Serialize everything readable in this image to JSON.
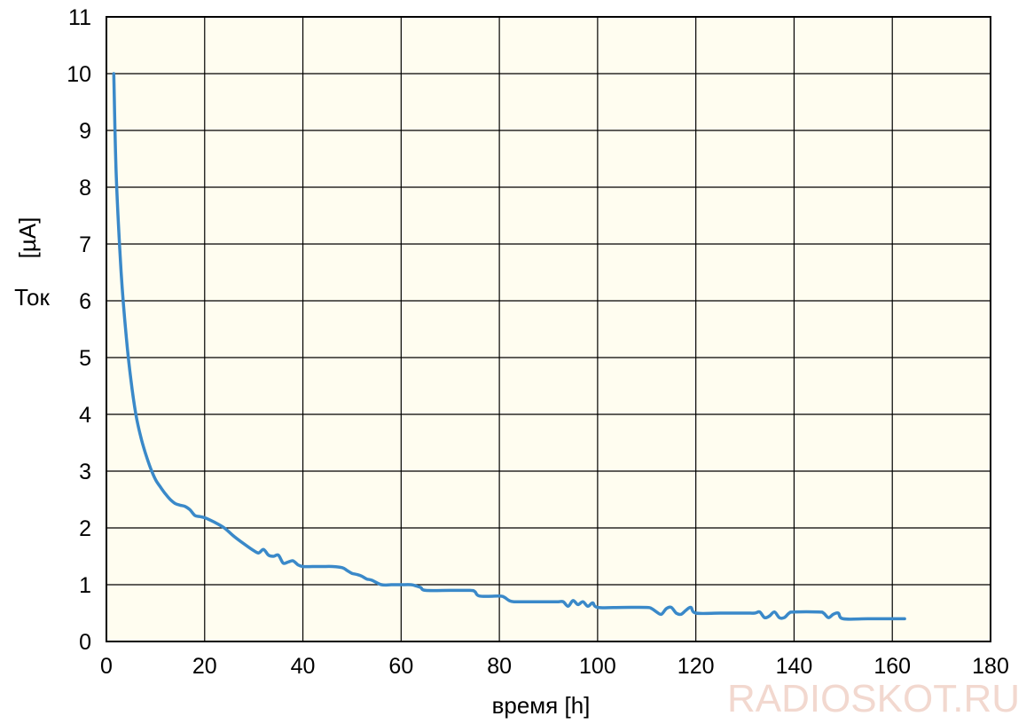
{
  "chart_data": {
    "type": "line",
    "xlabel": "время [h]",
    "ylabel_unit": "[µA]",
    "ylabel": "Ток",
    "xlim": [
      0,
      180
    ],
    "ylim": [
      0,
      11
    ],
    "x_ticks": [
      "0",
      "20",
      "40",
      "60",
      "80",
      "100",
      "120",
      "140",
      "160",
      "180"
    ],
    "y_ticks": [
      "0",
      "1",
      "2",
      "3",
      "4",
      "5",
      "6",
      "7",
      "8",
      "9",
      "10",
      "11"
    ],
    "grid": true,
    "plot_background": "#fffdf0",
    "line_color": "#3a89c9",
    "series": [
      {
        "x": [
          1.5,
          2,
          3,
          4,
          5,
          6,
          7,
          8,
          9,
          10,
          11,
          12,
          13,
          14,
          15,
          16,
          17,
          18,
          19,
          20,
          22,
          24,
          26,
          28,
          30,
          31,
          32,
          33,
          34,
          35,
          36,
          37,
          38,
          39,
          40,
          42,
          44,
          46,
          48,
          49,
          50,
          51,
          52,
          53,
          54,
          56,
          58,
          60,
          62,
          63,
          64,
          65,
          70,
          74,
          75,
          76,
          80,
          81,
          82,
          83,
          85,
          90,
          92,
          93,
          94,
          95,
          96,
          97,
          98,
          99,
          100,
          105,
          110,
          111,
          112,
          113,
          114,
          115,
          116,
          117,
          118,
          119,
          120,
          125,
          130,
          132,
          133,
          134,
          135,
          136,
          137,
          138,
          139,
          140,
          145,
          146,
          147,
          148,
          149,
          150,
          155,
          160,
          162.5
        ],
        "y": [
          10.0,
          8.2,
          6.5,
          5.4,
          4.6,
          4.0,
          3.6,
          3.3,
          3.05,
          2.85,
          2.72,
          2.6,
          2.5,
          2.43,
          2.4,
          2.38,
          2.32,
          2.22,
          2.2,
          2.18,
          2.1,
          2.0,
          1.85,
          1.72,
          1.6,
          1.56,
          1.62,
          1.52,
          1.5,
          1.52,
          1.38,
          1.4,
          1.42,
          1.35,
          1.32,
          1.32,
          1.32,
          1.32,
          1.3,
          1.25,
          1.2,
          1.18,
          1.15,
          1.1,
          1.08,
          1.0,
          1.0,
          1.0,
          1.0,
          0.98,
          0.95,
          0.9,
          0.9,
          0.9,
          0.88,
          0.8,
          0.8,
          0.78,
          0.72,
          0.7,
          0.7,
          0.7,
          0.7,
          0.7,
          0.62,
          0.72,
          0.65,
          0.7,
          0.62,
          0.68,
          0.6,
          0.6,
          0.6,
          0.58,
          0.52,
          0.48,
          0.58,
          0.6,
          0.5,
          0.48,
          0.55,
          0.6,
          0.5,
          0.5,
          0.5,
          0.5,
          0.52,
          0.42,
          0.45,
          0.52,
          0.42,
          0.42,
          0.5,
          0.52,
          0.52,
          0.5,
          0.42,
          0.48,
          0.5,
          0.4,
          0.4,
          0.4,
          0.4
        ]
      }
    ]
  },
  "watermark": "RADIOSKOT.RU"
}
